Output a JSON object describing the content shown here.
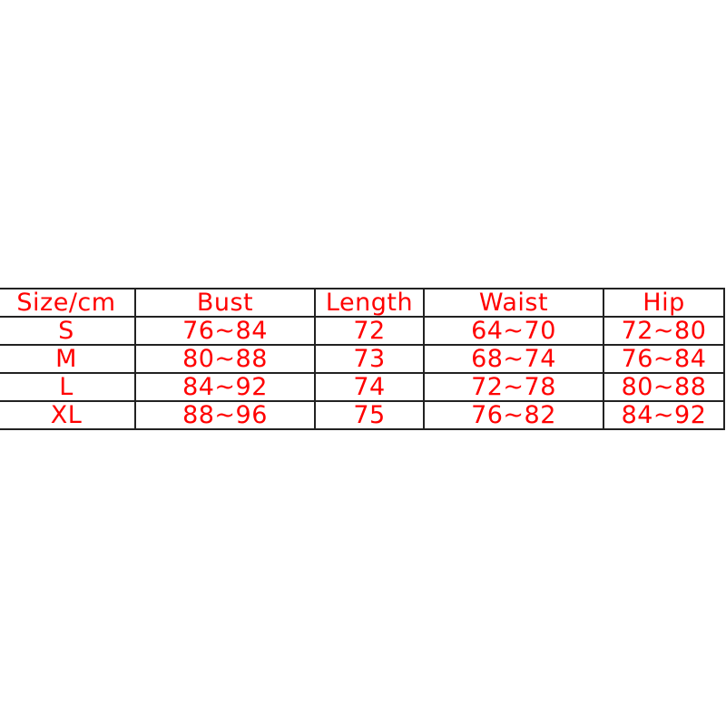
{
  "size_chart": {
    "headers": [
      "Size/cm",
      "Bust",
      "Length",
      "Waist",
      "Hip"
    ],
    "rows": [
      [
        "S",
        "76~84",
        "72",
        "64~70",
        "72~80"
      ],
      [
        "M",
        "80~88",
        "73",
        "68~74",
        "76~84"
      ],
      [
        "L",
        "84~92",
        "74",
        "72~78",
        "80~88"
      ],
      [
        "XL",
        "88~96",
        "75",
        "76~82",
        "84~92"
      ]
    ],
    "text_color": "#ff0000",
    "border_color": "#222222"
  }
}
